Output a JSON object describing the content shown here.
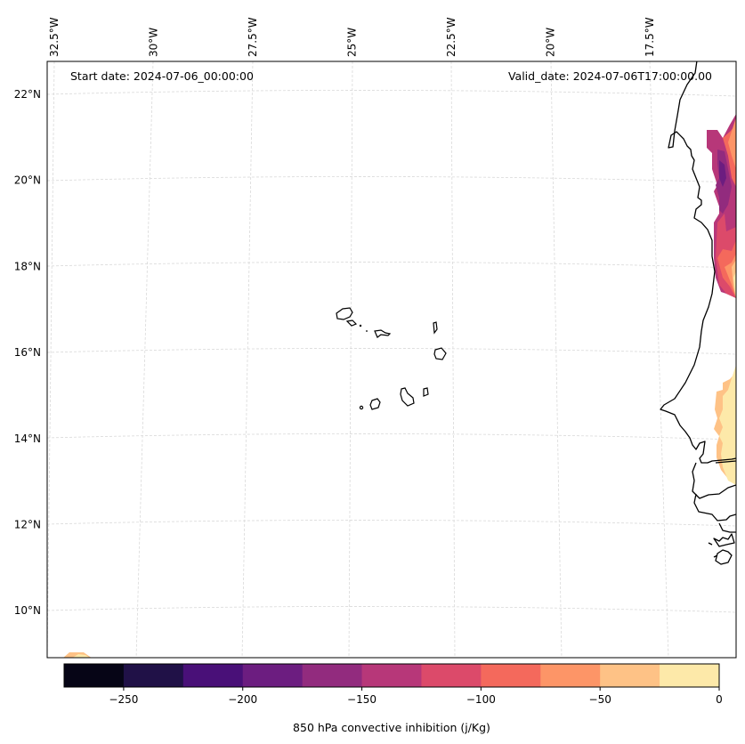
{
  "chart_data": {
    "type": "heatmap",
    "subtype": "filled-contour-map",
    "variable": "850 hPa convective inhibition",
    "units": "j/Kg",
    "colorbar_label": "850 hPa convective inhibition (j/Kg)",
    "colorbar_orientation": "horizontal",
    "colorbar_placement": "bottom",
    "levels": [
      -275,
      -250,
      -225,
      -200,
      -175,
      -150,
      -125,
      -100,
      -75,
      -50,
      -25,
      0
    ],
    "level_colors": [
      "#060516",
      "#201147",
      "#491078",
      "#6c1d80",
      "#922b7e",
      "#b73779",
      "#dc4a6a",
      "#f4695c",
      "#fd9567",
      "#fec286",
      "#fde9a9"
    ],
    "colorbar_ticks": [
      -250,
      -200,
      -150,
      -100,
      -50,
      0
    ],
    "colorbar_tick_labels": [
      "−250",
      "−200",
      "−150",
      "−100",
      "−50",
      "0"
    ],
    "lon_ticks": [
      -32.5,
      -30,
      -27.5,
      -25,
      -22.5,
      -20,
      -17.5
    ],
    "lon_tick_labels": [
      "32.5°W",
      "30°W",
      "27.5°W",
      "25°W",
      "22.5°W",
      "20°W",
      "17.5°W"
    ],
    "lat_ticks": [
      22,
      20,
      18,
      16,
      14,
      12,
      10
    ],
    "lat_tick_labels": [
      "22°N",
      "20°N",
      "18°N",
      "16°N",
      "14°N",
      "12°N",
      "10°N"
    ],
    "extent": {
      "lon_min": -32.6,
      "lon_max": -16.2,
      "lat_min": 8.9,
      "lat_max": 22.8
    },
    "grid": true,
    "regions": [
      {
        "name": "mauritania-coast-cin-band",
        "lat_range": [
          17.2,
          21.4
        ],
        "lon_range": [
          -16.6,
          -16.2
        ],
        "min_value_range": [
          -200,
          -175
        ],
        "max_value_range": [
          -25,
          0
        ]
      },
      {
        "name": "senegal-interior-cin",
        "lat_range": [
          12.5,
          15.5
        ],
        "lon_range": [
          -16.7,
          -16.2
        ],
        "value_ranges": [
          [
            -50,
            -25
          ],
          [
            -25,
            0
          ]
        ]
      },
      {
        "name": "southwest-corner-cin",
        "lat_range": [
          8.9,
          9.0
        ],
        "lon_range": [
          -32.3,
          -31.5
        ],
        "value_ranges": [
          [
            -50,
            -25
          ],
          [
            -25,
            0
          ]
        ]
      }
    ]
  },
  "annotations": {
    "start_date": "Start date: 2024-07-06_00:00:00",
    "valid_date": "Valid_date: 2024-07-06T17:00:00.00"
  }
}
